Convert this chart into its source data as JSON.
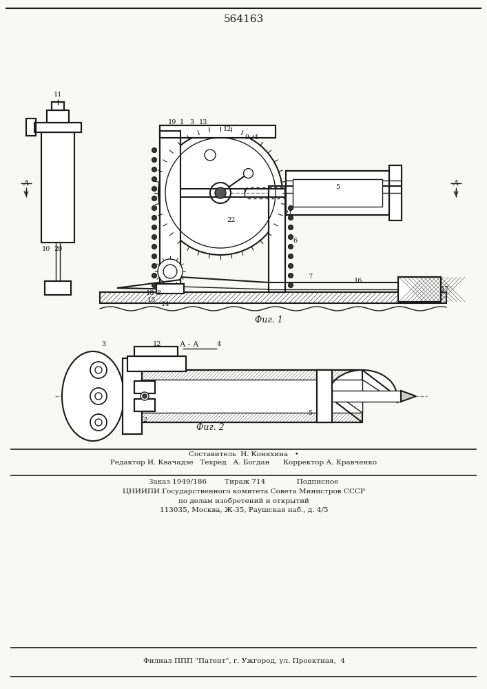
{
  "patent_number": "564163",
  "fig1_caption": "Фиг. 1",
  "fig2_caption": "Фиг. 2",
  "footer_lines": [
    "Составитель  Н. Коняхина   •",
    "Редактор И. Квачадзе   Техред   А. Богдан      Корректор А. Кравченко",
    "Заказ 1949/186        Тираж 714              Подписное",
    "ЦНИИПИ Государственного комитета Совета Министров СССР",
    "по делам изобретений и открытий",
    "113035, Москва, Ж-35, Раушская наб., д. 4/5",
    "Филиал ППП \"Патент\", г. Ужгород, ул. Проектная,  4"
  ],
  "bg_color": "#f8f8f5",
  "line_color": "#1a1a1a"
}
